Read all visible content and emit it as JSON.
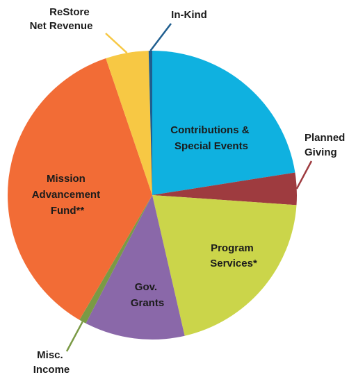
{
  "chart_data": {
    "type": "pie",
    "title": "",
    "start_angle_deg": 0,
    "direction": "clockwise",
    "slices": [
      {
        "label_lines": [
          "Contributions &",
          "Special Events"
        ],
        "value": 22.5,
        "color": "#0fb1e0"
      },
      {
        "label_lines": [
          "Planned",
          "Giving"
        ],
        "value": 3.6,
        "color": "#9e3b3f"
      },
      {
        "label_lines": [
          "Program",
          "Services*"
        ],
        "value": 20.3,
        "color": "#cbd54a"
      },
      {
        "label_lines": [
          "Gov.",
          "Grants"
        ],
        "value": 11.2,
        "color": "#8a68a9"
      },
      {
        "label_lines": [
          "Misc.",
          "Income"
        ],
        "value": 0.8,
        "color": "#7a9a45"
      },
      {
        "label_lines": [
          "Mission",
          "Advancement",
          "Fund**"
        ],
        "value": 36.4,
        "color": "#f26c36"
      },
      {
        "label_lines": [
          "ReStore",
          "Net Revenue"
        ],
        "value": 4.8,
        "color": "#f7c844"
      },
      {
        "label_lines": [
          "In-Kind"
        ],
        "value": 0.4,
        "color": "#1f5e8f"
      }
    ]
  }
}
